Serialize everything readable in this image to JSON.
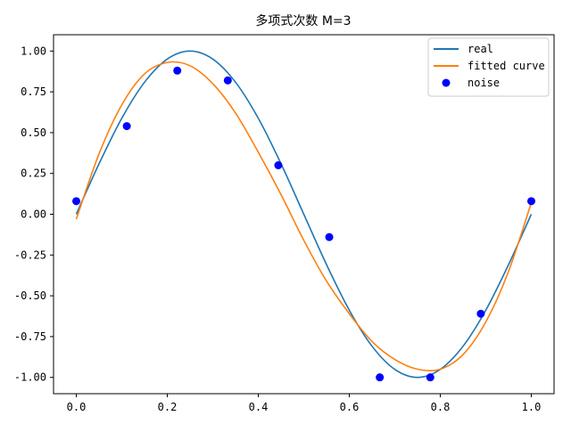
{
  "chart_data": {
    "type": "line",
    "title": "多项式次数 M=3",
    "xlabel": "",
    "ylabel": "",
    "xlim": [
      -0.05,
      1.05
    ],
    "ylim": [
      -1.1,
      1.1
    ],
    "x_ticks": [
      "0.0",
      "0.2",
      "0.4",
      "0.6",
      "0.8",
      "1.0"
    ],
    "x_tick_values": [
      0.0,
      0.2,
      0.4,
      0.6,
      0.8,
      1.0
    ],
    "y_ticks": [
      "1.00",
      "0.75",
      "0.50",
      "0.25",
      "0.00",
      "-0.25",
      "-0.50",
      "-0.75",
      "-1.00"
    ],
    "y_tick_values": [
      1.0,
      0.75,
      0.5,
      0.25,
      0.0,
      -0.25,
      -0.5,
      -0.75,
      -1.0
    ],
    "grid": false,
    "legend": "top-right",
    "series": [
      {
        "name": "real",
        "kind": "line",
        "color": "#1f77b4",
        "x": [
          0.0,
          0.05,
          0.1,
          0.15,
          0.2,
          0.25,
          0.3,
          0.35,
          0.4,
          0.45,
          0.5,
          0.55,
          0.6,
          0.65,
          0.7,
          0.75,
          0.8,
          0.85,
          0.9,
          0.95,
          1.0
        ],
        "y": [
          0.0,
          0.309,
          0.588,
          0.809,
          0.951,
          1.0,
          0.951,
          0.809,
          0.588,
          0.309,
          0.0,
          -0.309,
          -0.588,
          -0.809,
          -0.951,
          -1.0,
          -0.951,
          -0.809,
          -0.588,
          -0.309,
          0.0
        ]
      },
      {
        "name": "fitted curve",
        "kind": "line",
        "color": "#ff7f0e",
        "x": [
          0.0,
          0.05,
          0.1,
          0.15,
          0.2,
          0.25,
          0.3,
          0.35,
          0.4,
          0.45,
          0.5,
          0.55,
          0.6,
          0.65,
          0.7,
          0.75,
          0.8,
          0.85,
          0.9,
          0.95,
          1.0
        ],
        "y": [
          -0.03,
          0.37,
          0.67,
          0.86,
          0.93,
          0.91,
          0.8,
          0.62,
          0.38,
          0.12,
          -0.16,
          -0.41,
          -0.61,
          -0.78,
          -0.89,
          -0.95,
          -0.95,
          -0.86,
          -0.66,
          -0.35,
          0.07
        ]
      },
      {
        "name": "noise",
        "kind": "scatter",
        "color": "#0000ff",
        "x": [
          0.0,
          0.111,
          0.222,
          0.333,
          0.444,
          0.556,
          0.667,
          0.778,
          0.889,
          1.0
        ],
        "y": [
          0.08,
          0.54,
          0.88,
          0.82,
          0.3,
          -0.14,
          -1.0,
          -1.0,
          -0.61,
          0.08
        ]
      }
    ]
  }
}
